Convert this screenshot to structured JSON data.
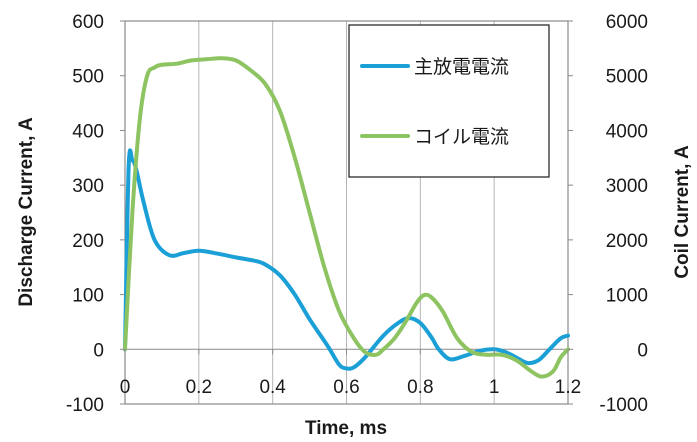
{
  "chart_data": {
    "type": "line",
    "xlabel": "Time, ms",
    "ylabel": "Discharge Current, A",
    "y2label": "Coil Current, A",
    "xlim": [
      0,
      1.2
    ],
    "ylim": [
      -100,
      600
    ],
    "y2lim": [
      -1000,
      6000
    ],
    "x_ticks": [
      0,
      0.2,
      0.4,
      0.6,
      0.8,
      1,
      1.2
    ],
    "x_tick_labels": [
      "0",
      "0.2",
      "0.4",
      "0.6",
      "0.8",
      "1",
      "1.2"
    ],
    "y_ticks": [
      -100,
      0,
      100,
      200,
      300,
      400,
      500,
      600
    ],
    "y_tick_labels": [
      "-100",
      "0",
      "100",
      "200",
      "300",
      "400",
      "500",
      "600"
    ],
    "y2_ticks": [
      -1000,
      0,
      1000,
      2000,
      3000,
      4000,
      5000,
      6000
    ],
    "y2_tick_labels": [
      "-1000",
      "0",
      "1000",
      "2000",
      "3000",
      "4000",
      "5000",
      "6000"
    ],
    "grid": "vertical",
    "legend_position": "top-right",
    "series": [
      {
        "name": "主放電電流",
        "axis": "left",
        "color": "#1a9fd6",
        "x": [
          0,
          0.01,
          0.02,
          0.03,
          0.05,
          0.08,
          0.12,
          0.16,
          0.2,
          0.25,
          0.3,
          0.35,
          0.38,
          0.42,
          0.46,
          0.5,
          0.55,
          0.58,
          0.6,
          0.62,
          0.65,
          0.7,
          0.74,
          0.77,
          0.8,
          0.83,
          0.85,
          0.88,
          0.92,
          0.96,
          1.0,
          1.03,
          1.06,
          1.09,
          1.12,
          1.15,
          1.18,
          1.2
        ],
        "y": [
          0,
          335,
          345,
          330,
          270,
          200,
          172,
          176,
          180,
          175,
          168,
          162,
          155,
          135,
          100,
          55,
          5,
          -28,
          -35,
          -33,
          -15,
          25,
          48,
          57,
          48,
          22,
          0,
          -18,
          -12,
          -3,
          0,
          -5,
          -15,
          -25,
          -20,
          0,
          20,
          25
        ]
      },
      {
        "name": "コイル電流",
        "axis": "right",
        "color": "#8dc461",
        "x": [
          0,
          0.02,
          0.04,
          0.06,
          0.08,
          0.1,
          0.14,
          0.18,
          0.22,
          0.26,
          0.3,
          0.34,
          0.38,
          0.42,
          0.46,
          0.5,
          0.54,
          0.58,
          0.62,
          0.65,
          0.68,
          0.7,
          0.73,
          0.76,
          0.79,
          0.81,
          0.83,
          0.86,
          0.9,
          0.94,
          0.98,
          1.02,
          1.06,
          1.1,
          1.13,
          1.16,
          1.18,
          1.2
        ],
        "y": [
          0,
          2500,
          4200,
          5000,
          5150,
          5200,
          5220,
          5280,
          5300,
          5320,
          5280,
          5100,
          4850,
          4350,
          3500,
          2500,
          1500,
          700,
          200,
          -50,
          -100,
          0,
          200,
          500,
          850,
          990,
          950,
          700,
          200,
          -50,
          -100,
          -100,
          -200,
          -400,
          -500,
          -400,
          -150,
          0
        ]
      }
    ]
  }
}
